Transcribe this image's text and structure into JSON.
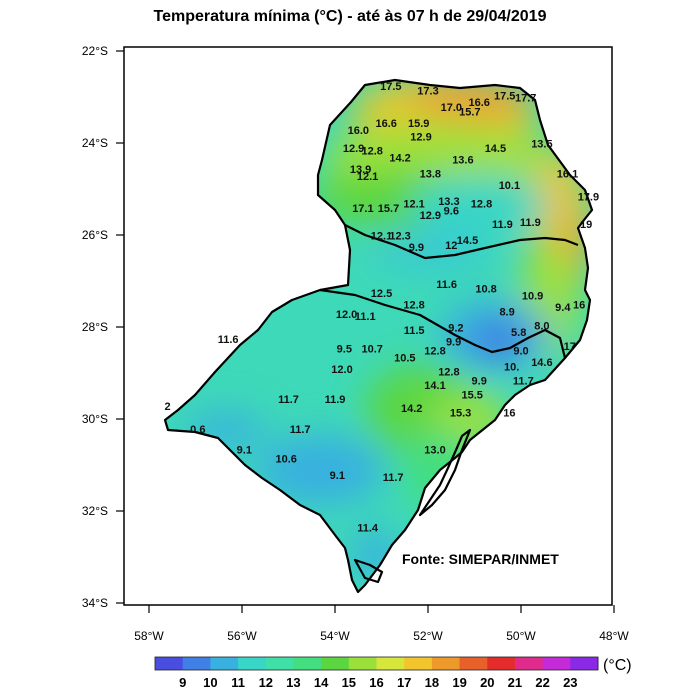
{
  "title": "Temperatura mínima  (°C) - até às 07 h de 29/04/2019",
  "credit": "Fonte: SIMEPAR/INMET",
  "lat_axis": [
    "22°S",
    "24°S",
    "26°S",
    "28°S",
    "30°S",
    "32°S",
    "34°S"
  ],
  "lon_axis": [
    "58°W",
    "56°W",
    "54°W",
    "52°W",
    "50°W",
    "48°W"
  ],
  "colorbar": {
    "unit": "(°C)",
    "labels": [
      "9",
      "10",
      "11",
      "12",
      "13",
      "14",
      "15",
      "16",
      "17",
      "18",
      "19",
      "20",
      "21",
      "22",
      "23"
    ],
    "colors": [
      "#4a4ee0",
      "#3f7fe6",
      "#38b0e0",
      "#37d6c6",
      "#3ee0a8",
      "#43de80",
      "#5bd640",
      "#9be03a",
      "#d7e63a",
      "#f2c52c",
      "#ee9a2a",
      "#e8602a",
      "#e42c2c",
      "#e02a8c",
      "#c42ad8",
      "#8a2ae6"
    ]
  },
  "stations": [
    {
      "t": "17.5",
      "lon": -52.8,
      "lat": -22.85
    },
    {
      "t": "17.3",
      "lon": -52.0,
      "lat": -22.95
    },
    {
      "t": "17.0",
      "lon": -51.5,
      "lat": -23.3
    },
    {
      "t": "16.6",
      "lon": -50.9,
      "lat": -23.2
    },
    {
      "t": "15.7",
      "lon": -51.1,
      "lat": -23.4
    },
    {
      "t": "17.5",
      "lon": -50.35,
      "lat": -23.05
    },
    {
      "t": "17.7",
      "lon": -49.9,
      "lat": -23.1
    },
    {
      "t": "16.0",
      "lon": -53.5,
      "lat": -23.8
    },
    {
      "t": "16.6",
      "lon": -52.9,
      "lat": -23.65
    },
    {
      "t": "15.9",
      "lon": -52.2,
      "lat": -23.65
    },
    {
      "t": "12.9",
      "lon": -52.15,
      "lat": -23.95
    },
    {
      "t": "12.9",
      "lon": -53.6,
      "lat": -24.2
    },
    {
      "t": "12.8",
      "lon": -53.2,
      "lat": -24.25
    },
    {
      "t": "14.2",
      "lon": -52.6,
      "lat": -24.4
    },
    {
      "t": "14.5",
      "lon": -50.55,
      "lat": -24.2
    },
    {
      "t": "13.5",
      "lon": -49.55,
      "lat": -24.1
    },
    {
      "t": "13.6",
      "lon": -51.25,
      "lat": -24.45
    },
    {
      "t": "13.9",
      "lon": -53.45,
      "lat": -24.65
    },
    {
      "t": "12.1",
      "lon": -53.3,
      "lat": -24.8
    },
    {
      "t": "13.8",
      "lon": -51.95,
      "lat": -24.75
    },
    {
      "t": "16.1",
      "lon": -49.0,
      "lat": -24.75
    },
    {
      "t": "10.1",
      "lon": -50.25,
      "lat": -25.0
    },
    {
      "t": "17.9",
      "lon": -48.55,
      "lat": -25.25
    },
    {
      "t": "17.1",
      "lon": -53.4,
      "lat": -25.5
    },
    {
      "t": "15.7",
      "lon": -52.85,
      "lat": -25.5
    },
    {
      "t": "12.1",
      "lon": -52.3,
      "lat": -25.4
    },
    {
      "t": "13.3",
      "lon": -51.55,
      "lat": -25.35
    },
    {
      "t": "9.6",
      "lon": -51.5,
      "lat": -25.55
    },
    {
      "t": "12.9",
      "lon": -51.95,
      "lat": -25.65
    },
    {
      "t": "12.8",
      "lon": -50.85,
      "lat": -25.4
    },
    {
      "t": "11.9",
      "lon": -50.4,
      "lat": -25.85
    },
    {
      "t": "11.9",
      "lon": -49.8,
      "lat": -25.8
    },
    {
      "t": "19",
      "lon": -48.6,
      "lat": -25.85
    },
    {
      "t": "12.1",
      "lon": -53.0,
      "lat": -26.1
    },
    {
      "t": "12.3",
      "lon": -52.6,
      "lat": -26.1
    },
    {
      "t": "9.9",
      "lon": -52.25,
      "lat": -26.35
    },
    {
      "t": "12",
      "lon": -51.5,
      "lat": -26.3
    },
    {
      "t": "14.5",
      "lon": -51.15,
      "lat": -26.2
    },
    {
      "t": "11.6",
      "lon": -51.6,
      "lat": -27.15
    },
    {
      "t": "10.8",
      "lon": -50.75,
      "lat": -27.25
    },
    {
      "t": "10.9",
      "lon": -49.75,
      "lat": -27.4
    },
    {
      "t": "9.4",
      "lon": -49.1,
      "lat": -27.65
    },
    {
      "t": "16",
      "lon": -48.75,
      "lat": -27.6
    },
    {
      "t": "12.5",
      "lon": -53.0,
      "lat": -27.35
    },
    {
      "t": "12.8",
      "lon": -52.3,
      "lat": -27.6
    },
    {
      "t": "12.0",
      "lon": -53.75,
      "lat": -27.8
    },
    {
      "t": "11.1",
      "lon": -53.35,
      "lat": -27.85
    },
    {
      "t": "8.9",
      "lon": -50.3,
      "lat": -27.75
    },
    {
      "t": "11.5",
      "lon": -52.3,
      "lat": -28.15
    },
    {
      "t": "9.2",
      "lon": -51.4,
      "lat": -28.1
    },
    {
      "t": "5.8",
      "lon": -50.05,
      "lat": -28.2
    },
    {
      "t": "8.0",
      "lon": -49.55,
      "lat": -28.05
    },
    {
      "t": "11.6",
      "lon": -56.3,
      "lat": -28.35
    },
    {
      "t": "9.9",
      "lon": -51.45,
      "lat": -28.4
    },
    {
      "t": "17",
      "lon": -48.95,
      "lat": -28.5
    },
    {
      "t": "9.5",
      "lon": -53.8,
      "lat": -28.55
    },
    {
      "t": "10.7",
      "lon": -53.2,
      "lat": -28.55
    },
    {
      "t": "12.8",
      "lon": -51.85,
      "lat": -28.6
    },
    {
      "t": "9.0",
      "lon": -50.0,
      "lat": -28.6
    },
    {
      "t": "10.5",
      "lon": -52.5,
      "lat": -28.75
    },
    {
      "t": "14.6",
      "lon": -49.55,
      "lat": -28.85
    },
    {
      "t": "10.",
      "lon": -50.2,
      "lat": -28.95
    },
    {
      "t": "12.0",
      "lon": -53.85,
      "lat": -29.0
    },
    {
      "t": "12.8",
      "lon": -51.55,
      "lat": -29.05
    },
    {
      "t": "14.1",
      "lon": -51.85,
      "lat": -29.35
    },
    {
      "t": "9.9",
      "lon": -50.9,
      "lat": -29.25
    },
    {
      "t": "11.7",
      "lon": -49.95,
      "lat": -29.25
    },
    {
      "t": "15.5",
      "lon": -51.05,
      "lat": -29.55
    },
    {
      "t": "11.7",
      "lon": -55.0,
      "lat": -29.65
    },
    {
      "t": "11.9",
      "lon": -54.0,
      "lat": -29.65
    },
    {
      "t": "14.2",
      "lon": -52.35,
      "lat": -29.85
    },
    {
      "t": "2",
      "lon": -57.6,
      "lat": -29.8
    },
    {
      "t": "15.3",
      "lon": -51.3,
      "lat": -29.95
    },
    {
      "t": "16",
      "lon": -50.25,
      "lat": -29.95
    },
    {
      "t": "0.6",
      "lon": -56.95,
      "lat": -30.3
    },
    {
      "t": "11.7",
      "lon": -54.75,
      "lat": -30.3
    },
    {
      "t": "9.1",
      "lon": -55.95,
      "lat": -30.75
    },
    {
      "t": "13.0",
      "lon": -51.85,
      "lat": -30.75
    },
    {
      "t": "10.6",
      "lon": -55.05,
      "lat": -30.95
    },
    {
      "t": "9.1",
      "lon": -53.95,
      "lat": -31.3
    },
    {
      "t": "11.7",
      "lon": -52.75,
      "lat": -31.35
    },
    {
      "t": "11.4",
      "lon": -53.3,
      "lat": -32.45
    }
  ]
}
